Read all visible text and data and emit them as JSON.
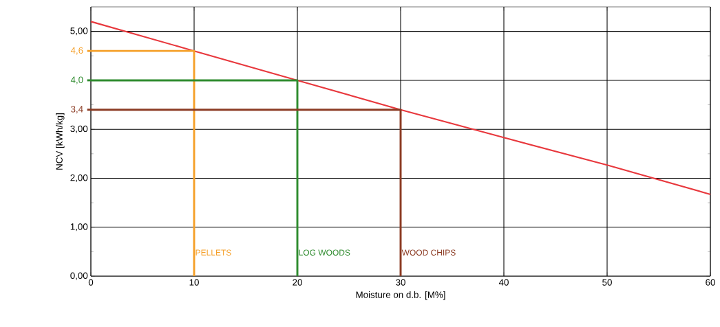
{
  "chart_data": {
    "type": "line",
    "xlabel": "Moisture on d.b. [M%]",
    "ylabel": "NCV [kWh/kg]",
    "xlim": [
      0,
      60
    ],
    "ylim": [
      0,
      5.5
    ],
    "xticks": [
      0,
      10,
      20,
      30,
      40,
      50,
      60
    ],
    "yticks": [
      {
        "value": 0,
        "label": "0,00"
      },
      {
        "value": 1,
        "label": "1,00"
      },
      {
        "value": 2,
        "label": "2,00"
      },
      {
        "value": 3,
        "label": "3,00"
      },
      {
        "value": 4,
        "label": null
      },
      {
        "value": 5,
        "label": "5,00"
      }
    ],
    "grid": true,
    "marker": "none",
    "line_style": "solid",
    "series": [
      {
        "color": "#e8383d",
        "x": [
          0,
          10,
          20,
          30,
          40,
          50,
          60
        ],
        "values": [
          5.2,
          4.6,
          4.0,
          3.4,
          2.83,
          2.27,
          1.67
        ]
      },
      {
        "name": "PELLETS",
        "color": "#f5a02a",
        "x": [
          0,
          10,
          10
        ],
        "values": [
          4.6,
          4.6,
          0
        ]
      },
      {
        "name": "LOG WOODS",
        "color": "#2e8b2e",
        "x": [
          0,
          20,
          20
        ],
        "values": [
          4.0,
          4.0,
          0
        ]
      },
      {
        "name": "WOOD CHIPS",
        "color": "#8b3a22",
        "x": [
          0,
          30,
          30
        ],
        "values": [
          3.4,
          3.4,
          0
        ]
      }
    ],
    "annotations": [
      "4,6",
      "4,0",
      "3,4"
    ]
  }
}
